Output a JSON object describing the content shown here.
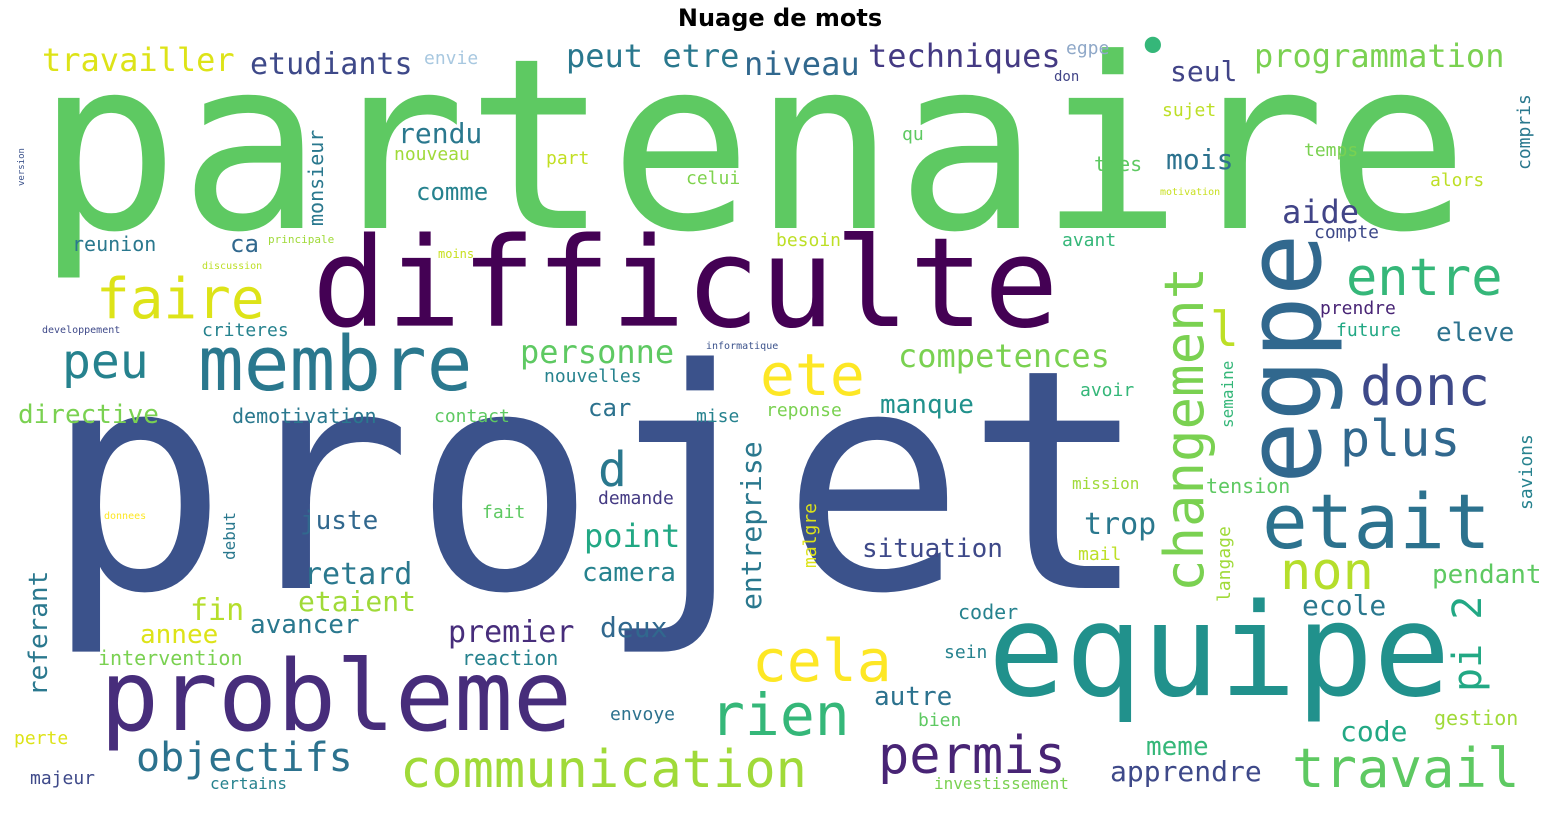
{
  "title": "Nuage de mots",
  "words": [
    {
      "text": "partenaire",
      "color": "#5ec962"
    },
    {
      "text": "projet",
      "color": "#3b528b"
    },
    {
      "text": "difficulte",
      "color": "#440154"
    },
    {
      "text": "equipe",
      "color": "#21918c"
    },
    {
      "text": "probleme",
      "color": "#472d7b"
    },
    {
      "text": "membre",
      "color": "#2a788e"
    },
    {
      "text": "egpe",
      "color": "#31688e"
    },
    {
      "text": "etait",
      "color": "#2c728e"
    },
    {
      "text": "communication",
      "color": "#a0da39"
    },
    {
      "text": "changement",
      "color": "#7ad151"
    },
    {
      "text": "travail",
      "color": "#5ec962"
    },
    {
      "text": "faire",
      "color": "#dde318"
    },
    {
      "text": "ete",
      "color": "#fde725"
    },
    {
      "text": "cela",
      "color": "#fde725"
    },
    {
      "text": "rien",
      "color": "#35b779"
    },
    {
      "text": "permis",
      "color": "#482475"
    },
    {
      "text": "donc",
      "color": "#3e4989"
    },
    {
      "text": "plus",
      "color": "#31688e"
    },
    {
      "text": "entre",
      "color": "#35b779"
    },
    {
      "text": "peu",
      "color": "#26828e"
    },
    {
      "text": "non",
      "color": "#b5de2b"
    },
    {
      "text": "objectifs",
      "color": "#2c728e"
    },
    {
      "text": "competences",
      "color": "#7ad151"
    },
    {
      "text": "personne",
      "color": "#5ec962"
    },
    {
      "text": "d",
      "color": "#2a788e"
    },
    {
      "text": "l",
      "color": "#bddf26"
    },
    {
      "text": "pi 2",
      "color": "#22a884"
    },
    {
      "text": "travailler",
      "color": "#dde318"
    },
    {
      "text": "etudiants",
      "color": "#3e4989"
    },
    {
      "text": "peut etre",
      "color": "#2a788e"
    },
    {
      "text": "niveau",
      "color": "#31688e"
    },
    {
      "text": "techniques",
      "color": "#443a83"
    },
    {
      "text": "programmation",
      "color": "#7ad151"
    },
    {
      "text": "seul",
      "color": "#414487"
    },
    {
      "text": "envie",
      "color": "#a8c8e0"
    },
    {
      "text": "egpe",
      "color": "#8fa8c8"
    },
    {
      "text": "•",
      "color": "#35b779"
    },
    {
      "text": "rendu",
      "color": "#2a788e"
    },
    {
      "text": "mois",
      "color": "#2c728e"
    },
    {
      "text": "comme",
      "color": "#26828e"
    },
    {
      "text": "ca",
      "color": "#31688e"
    },
    {
      "text": "aide",
      "color": "#414487"
    },
    {
      "text": "nouveau",
      "color": "#a0da39"
    },
    {
      "text": "part",
      "color": "#c2df23"
    },
    {
      "text": "celui",
      "color": "#7fd34e"
    },
    {
      "text": "tres",
      "color": "#5ec962"
    },
    {
      "text": "temps",
      "color": "#7ad151"
    },
    {
      "text": "alors",
      "color": "#bddf26"
    },
    {
      "text": "compte",
      "color": "#3e4989"
    },
    {
      "text": "compris",
      "color": "#2a788e"
    },
    {
      "text": "sujet",
      "color": "#bddf26"
    },
    {
      "text": "qu",
      "color": "#5ec962"
    },
    {
      "text": "don",
      "color": "#414487"
    },
    {
      "text": "monsieur",
      "color": "#2a788e"
    },
    {
      "text": "reunion",
      "color": "#2a788e"
    },
    {
      "text": "principale",
      "color": "#a0da39"
    },
    {
      "text": "moins",
      "color": "#c8e020"
    },
    {
      "text": "besoin",
      "color": "#bddf26"
    },
    {
      "text": "avant",
      "color": "#35b779"
    },
    {
      "text": "motivation",
      "color": "#c8e020"
    },
    {
      "text": "discussion",
      "color": "#bddf26"
    },
    {
      "text": "developpement",
      "color": "#3e4989"
    },
    {
      "text": "criteres",
      "color": "#26828e"
    },
    {
      "text": "informatique",
      "color": "#3b528b"
    },
    {
      "text": "prendre",
      "color": "#482475"
    },
    {
      "text": "future",
      "color": "#22a884"
    },
    {
      "text": "eleve",
      "color": "#2c728e"
    },
    {
      "text": "semaine",
      "color": "#35b779"
    },
    {
      "text": "avoir",
      "color": "#35b779"
    },
    {
      "text": "savions",
      "color": "#26828e"
    },
    {
      "text": "directive",
      "color": "#7ad151"
    },
    {
      "text": "demotivation",
      "color": "#2a788e"
    },
    {
      "text": "contact",
      "color": "#5ec962"
    },
    {
      "text": "nouvelles",
      "color": "#26828e"
    },
    {
      "text": "car",
      "color": "#2c728e"
    },
    {
      "text": "mise",
      "color": "#26828e"
    },
    {
      "text": "reponse",
      "color": "#7ad151"
    },
    {
      "text": "manque",
      "color": "#21918c"
    },
    {
      "text": "entreprise",
      "color": "#2a788e"
    },
    {
      "text": "juste",
      "color": "#31688e"
    },
    {
      "text": "point",
      "color": "#22a884"
    },
    {
      "text": "demande",
      "color": "#443a83"
    },
    {
      "text": "fait",
      "color": "#5ec962"
    },
    {
      "text": "situation",
      "color": "#3e4989"
    },
    {
      "text": "trop",
      "color": "#2a788e"
    },
    {
      "text": "mission",
      "color": "#a0da39"
    },
    {
      "text": "tension",
      "color": "#5ec962"
    },
    {
      "text": "mail",
      "color": "#bddf26"
    },
    {
      "text": "langage",
      "color": "#a0da39"
    },
    {
      "text": "donnees",
      "color": "#fde725"
    },
    {
      "text": "debut",
      "color": "#2a788e"
    },
    {
      "text": "malgre",
      "color": "#dde318"
    },
    {
      "text": "retard",
      "color": "#2a788e"
    },
    {
      "text": "etaient",
      "color": "#a0da39"
    },
    {
      "text": "camera",
      "color": "#26828e"
    },
    {
      "text": "pendant",
      "color": "#5ec962"
    },
    {
      "text": "ecole",
      "color": "#2a788e"
    },
    {
      "text": "referant",
      "color": "#2a788e"
    },
    {
      "text": "fin",
      "color": "#b5de2b"
    },
    {
      "text": "annee",
      "color": "#dde318"
    },
    {
      "text": "avancer",
      "color": "#2a788e"
    },
    {
      "text": "premier",
      "color": "#472d7b"
    },
    {
      "text": "deux",
      "color": "#31688e"
    },
    {
      "text": "coder",
      "color": "#26828e"
    },
    {
      "text": "intervention",
      "color": "#7ad151"
    },
    {
      "text": "reaction",
      "color": "#26828e"
    },
    {
      "text": "sein",
      "color": "#26828e"
    },
    {
      "text": "autre",
      "color": "#2c728e"
    },
    {
      "text": "bien",
      "color": "#5ec962"
    },
    {
      "text": "envoye",
      "color": "#2c728e"
    },
    {
      "text": "code",
      "color": "#22a884"
    },
    {
      "text": "gestion",
      "color": "#a0da39"
    },
    {
      "text": "meme",
      "color": "#35b779"
    },
    {
      "text": "apprendre",
      "color": "#3e4989"
    },
    {
      "text": "perte",
      "color": "#dde318"
    },
    {
      "text": "majeur",
      "color": "#3e4989"
    },
    {
      "text": "certains",
      "color": "#26828e"
    },
    {
      "text": "investissement",
      "color": "#7ad151"
    },
    {
      "text": "version",
      "color": "#3b528b"
    }
  ]
}
